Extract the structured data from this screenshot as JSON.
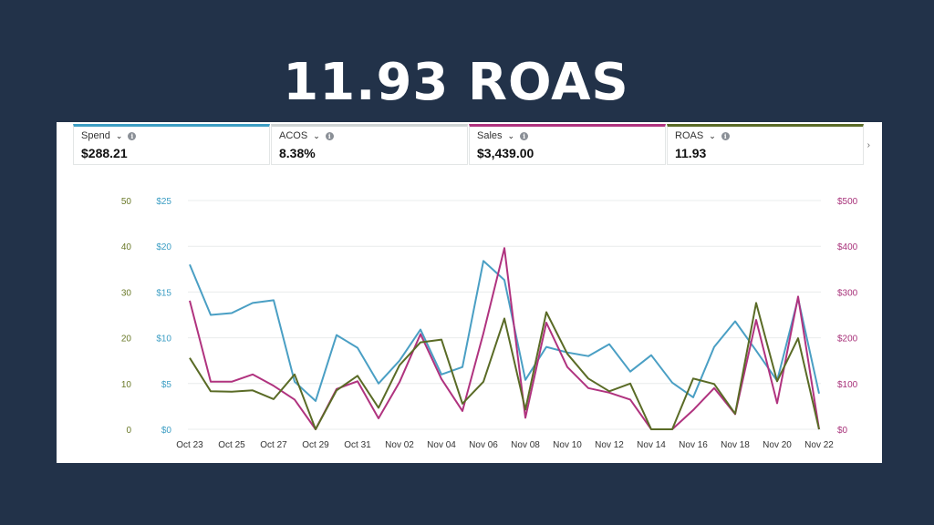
{
  "headline": "11.93 ROAS",
  "metrics": [
    {
      "label": "Spend",
      "value": "$288.21",
      "color": "#3d9ec4"
    },
    {
      "label": "ACOS",
      "value": "8.38%",
      "color": "#cfd4d4"
    },
    {
      "label": "Sales",
      "value": "$3,439.00",
      "color": "#b0337f"
    },
    {
      "label": "ROAS",
      "value": "11.93",
      "color": "#5a6b26"
    }
  ],
  "chart_data": {
    "type": "line",
    "x_ticks": [
      "Oct 23",
      "Oct 25",
      "Oct 27",
      "Oct 29",
      "Oct 31",
      "Nov 02",
      "Nov 04",
      "Nov 06",
      "Nov 08",
      "Nov 10",
      "Nov 12",
      "Nov 14",
      "Nov 16",
      "Nov 18",
      "Nov 20",
      "Nov 22"
    ],
    "x": [
      "Oct 23",
      "Oct 24",
      "Oct 25",
      "Oct 26",
      "Oct 27",
      "Oct 28",
      "Oct 29",
      "Oct 30",
      "Oct 31",
      "Nov 01",
      "Nov 02",
      "Nov 03",
      "Nov 04",
      "Nov 05",
      "Nov 06",
      "Nov 07",
      "Nov 08",
      "Nov 09",
      "Nov 10",
      "Nov 11",
      "Nov 12",
      "Nov 13",
      "Nov 14",
      "Nov 15",
      "Nov 16",
      "Nov 17",
      "Nov 18",
      "Nov 19",
      "Nov 20",
      "Nov 21",
      "Nov 22"
    ],
    "axes": {
      "left_outer": {
        "ticks": [
          "0",
          "10",
          "20",
          "30",
          "40",
          "50"
        ],
        "range": [
          0,
          50
        ],
        "color": "#6b7a2a"
      },
      "left_inner": {
        "ticks": [
          "$0",
          "$5",
          "$10",
          "$15",
          "$20",
          "$25"
        ],
        "range": [
          0,
          25
        ],
        "color": "#3d9ec4"
      },
      "right": {
        "ticks": [
          "$0",
          "$100",
          "$200",
          "$300",
          "$400",
          "$500"
        ],
        "range": [
          0,
          500
        ],
        "color": "#a8327a"
      }
    },
    "grid": true,
    "series": [
      {
        "key": "spend",
        "axis": "left_inner",
        "color": "#4a9fc4",
        "values": [
          18,
          12.5,
          12.7,
          13.8,
          14.1,
          5.2,
          3.1,
          10.3,
          8.9,
          5.0,
          7.5,
          10.9,
          6.0,
          6.8,
          18.4,
          16.3,
          5.4,
          9.0,
          8.4,
          8.0,
          9.3,
          6.3,
          8.1,
          5.1,
          3.5,
          9.0,
          11.8,
          8.6,
          5.3,
          14.3,
          3.9
        ]
      },
      {
        "key": "sales",
        "axis": "right",
        "color": "#b0337f",
        "values": [
          281,
          104,
          104,
          120,
          95,
          65,
          0,
          88,
          105,
          24,
          103,
          208,
          110,
          40,
          210,
          396,
          25,
          233,
          136,
          90,
          80,
          65,
          0,
          0,
          42,
          90,
          33,
          239,
          57,
          290,
          0
        ]
      },
      {
        "key": "roas",
        "axis": "left_outer",
        "color": "#5a6b26",
        "values": [
          15.6,
          8.3,
          8.2,
          8.5,
          6.6,
          12,
          0,
          8.5,
          11.7,
          4.7,
          14,
          19,
          19.6,
          5.6,
          10.4,
          24.2,
          4.3,
          25.6,
          16.5,
          11.1,
          8.3,
          10,
          0,
          0,
          11.1,
          9.9,
          3.4,
          27.6,
          10.5,
          19.9,
          0
        ]
      }
    ]
  }
}
